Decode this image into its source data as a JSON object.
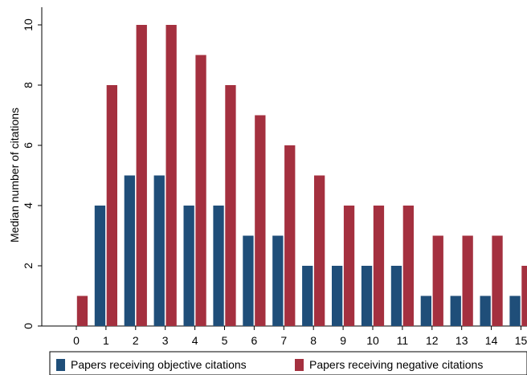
{
  "chart_data": {
    "type": "bar",
    "xlabel": "",
    "ylabel": "Median number of citations",
    "ylim": [
      0,
      10
    ],
    "yticks": [
      0,
      2,
      4,
      6,
      8,
      10
    ],
    "categories": [
      "0",
      "1",
      "2",
      "3",
      "4",
      "5",
      "6",
      "7",
      "8",
      "9",
      "10",
      "11",
      "12",
      "13",
      "14",
      "15"
    ],
    "series": [
      {
        "name": "Papers receiving objective citations",
        "color": "#1f4e79",
        "values": [
          0,
          4,
          5,
          5,
          4,
          4,
          3,
          3,
          2,
          2,
          2,
          2,
          1,
          1,
          1,
          1
        ]
      },
      {
        "name": "Papers receiving negative citations",
        "color": "#a4303f",
        "values": [
          1,
          8,
          10,
          10,
          9,
          8,
          7,
          6,
          5,
          4,
          4,
          4,
          3,
          3,
          3,
          2
        ]
      }
    ],
    "grid": false,
    "legend_position": "bottom"
  }
}
